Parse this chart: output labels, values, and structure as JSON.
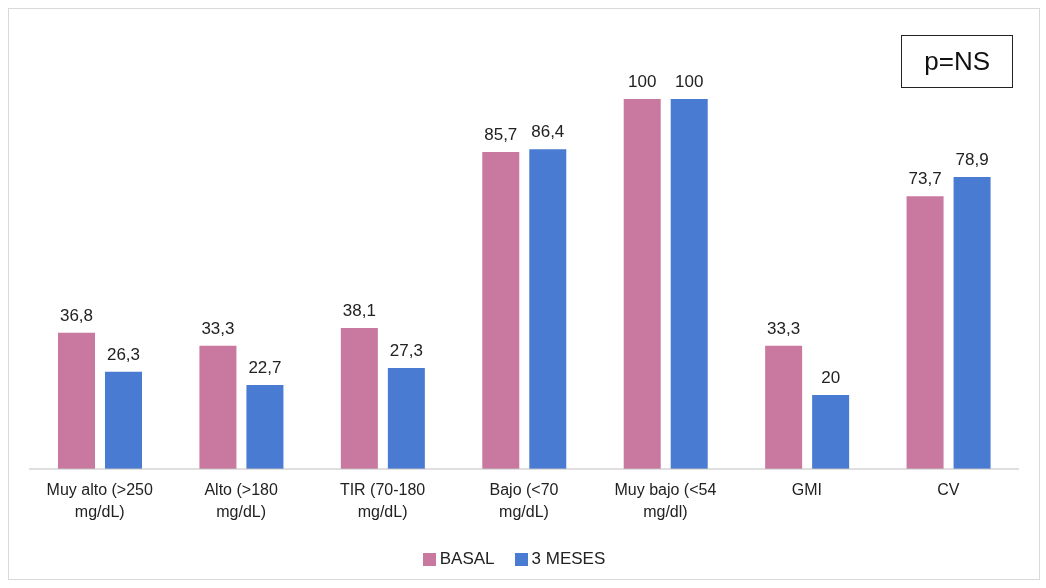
{
  "chart_data": {
    "type": "bar",
    "categories": [
      "Muy alto (>250 mg/dL)",
      "Alto (>180 mg/dL)",
      "TIR (70-180 mg/dL)",
      "Bajo (<70 mg/dL)",
      "Muy bajo (<54 mg/dl)",
      "GMI",
      "CV"
    ],
    "series": [
      {
        "name": "BASAL",
        "color": "#c9799f",
        "values": [
          36.8,
          33.3,
          38.1,
          85.7,
          100,
          33.3,
          73.7
        ],
        "value_labels": [
          "36,8",
          "33,3",
          "38,1",
          "85,7",
          "100",
          "33,3",
          "73,7"
        ]
      },
      {
        "name": "3 MESES",
        "color": "#4a7bd3",
        "values": [
          26.3,
          22.7,
          27.3,
          86.4,
          100,
          20,
          78.9
        ],
        "value_labels": [
          "26,3",
          "22,7",
          "27,3",
          "86,4",
          "100",
          "20",
          "78,9"
        ]
      }
    ],
    "legend": "bottom",
    "annotations": [
      "p=NS"
    ]
  }
}
